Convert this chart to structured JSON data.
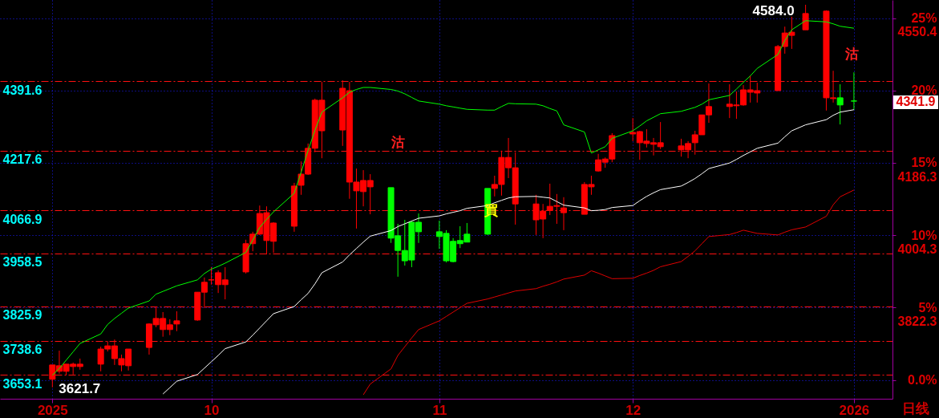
{
  "chart_data": {
    "type": "candlestick",
    "x": [
      "2025-09-08",
      "2025-09-09",
      "2025-09-10",
      "2025-09-11",
      "2025-09-12",
      "2025-09-15",
      "2025-09-16",
      "2025-09-17",
      "2025-09-18",
      "2025-09-19",
      "2025-09-22",
      "2025-09-23",
      "2025-09-24",
      "2025-09-25",
      "2025-09-26",
      "2025-09-29",
      "2025-09-30",
      "2025-10-01",
      "2025-10-02",
      "2025-10-03",
      "2025-10-06",
      "2025-10-07",
      "2025-10-08",
      "2025-10-09",
      "2025-10-10",
      "2025-10-13",
      "2025-10-14",
      "2025-10-15",
      "2025-10-16",
      "2025-10-17",
      "2025-10-20",
      "2025-10-21",
      "2025-10-22",
      "2025-10-23",
      "2025-10-24",
      "2025-10-27",
      "2025-10-28",
      "2025-10-29",
      "2025-10-30",
      "2025-10-31",
      "2025-11-03",
      "2025-11-04",
      "2025-11-05",
      "2025-11-06",
      "2025-11-07",
      "2025-11-10",
      "2025-11-11",
      "2025-11-12",
      "2025-11-13",
      "2025-11-14",
      "2025-11-17",
      "2025-11-18",
      "2025-11-19",
      "2025-11-20",
      "2025-11-21",
      "2025-11-24",
      "2025-11-25",
      "2025-11-26",
      "2025-11-27",
      "2025-11-28",
      "2025-12-01",
      "2025-12-02",
      "2025-12-03",
      "2025-12-04",
      "2025-12-05",
      "2025-12-08",
      "2025-12-09",
      "2025-12-10",
      "2025-12-11",
      "2025-12-12",
      "2025-12-15",
      "2025-12-16",
      "2025-12-17",
      "2025-12-18",
      "2025-12-19",
      "2025-12-22",
      "2025-12-23",
      "2025-12-24",
      "2025-12-26",
      "2025-12-29",
      "2025-12-30",
      "2025-12-31",
      "2026-01-02"
    ],
    "ohlc": [
      [
        3642,
        3678,
        3621.7,
        3678
      ],
      [
        3662,
        3714,
        3656,
        3676
      ],
      [
        3662,
        3680,
        3652,
        3680
      ],
      [
        3674,
        3684,
        3654,
        3680
      ],
      [
        3674,
        3694,
        3666,
        3680
      ],
      [
        3680,
        3724,
        3662,
        3718
      ],
      [
        3718,
        3738,
        3712,
        3726
      ],
      [
        3694,
        3742,
        3678,
        3726
      ],
      [
        3678,
        3704,
        3662,
        3694
      ],
      [
        3676,
        3718,
        3664,
        3718
      ],
      [
        3722,
        3783,
        3704,
        3781
      ],
      [
        3779,
        3825,
        3773,
        3795
      ],
      [
        3767,
        3811,
        3749,
        3795
      ],
      [
        3767,
        3793,
        3753,
        3779
      ],
      [
        3781,
        3813,
        3763,
        3789
      ],
      [
        3791,
        3861,
        3789,
        3861
      ],
      [
        3861,
        3898,
        3821,
        3886
      ],
      [
        3892,
        3924,
        3880,
        3892
      ],
      [
        3880,
        3916,
        3859,
        3910
      ],
      [
        3880,
        3924,
        3843,
        3892
      ],
      [
        3912,
        3993,
        3908,
        3983
      ],
      [
        3983,
        4013,
        3964,
        4007
      ],
      [
        4007,
        4079,
        4005,
        4059
      ],
      [
        3991,
        4077,
        3956,
        4061
      ],
      [
        3989,
        4037,
        3960,
        4035
      ],
      [
        4027,
        4136,
        4013,
        4128
      ],
      [
        4130,
        4190,
        4106,
        4158
      ],
      [
        4158,
        4235,
        4156,
        4223
      ],
      [
        4223,
        4348,
        4213,
        4344
      ],
      [
        4267,
        4390,
        4198,
        4344
      ],
      [
        4269,
        4394,
        4229,
        4374
      ],
      [
        4138,
        4390,
        4096,
        4368
      ],
      [
        4116,
        4172,
        4021,
        4138
      ],
      [
        4114,
        4168,
        4077,
        4142
      ],
      [
        4126,
        4158,
        4057,
        4142
      ],
      [
        4124,
        4124,
        3985,
        3997
      ],
      [
        4003,
        4033,
        3900,
        3966
      ],
      [
        3966,
        4043,
        3928,
        3940
      ],
      [
        4037,
        4041,
        3924,
        3942
      ],
      [
        4037,
        4059,
        3985,
        4013
      ],
      [
        4013,
        4041,
        3970,
        4001
      ],
      [
        4009,
        4017,
        3936,
        3940
      ],
      [
        3989,
        3997,
        3936,
        3938
      ],
      [
        3991,
        4027,
        3972,
        3983
      ],
      [
        4007,
        4035,
        3987,
        3987
      ],
      [
        4122,
        4122,
        4005,
        4007
      ],
      [
        4122,
        4154,
        4102,
        4132
      ],
      [
        4132,
        4217,
        4104,
        4200
      ],
      [
        4174,
        4249,
        4148,
        4200
      ],
      [
        4083,
        4213,
        4031,
        4174
      ],
      [
        4043,
        4106,
        4005,
        4083
      ],
      [
        4045,
        4083,
        3997,
        4065
      ],
      [
        4067,
        4134,
        4055,
        4077
      ],
      [
        4077,
        4108,
        4033,
        4079
      ],
      [
        4061,
        4100,
        4017,
        4073
      ],
      [
        4057,
        4138,
        4057,
        4132
      ],
      [
        4126,
        4154,
        4106,
        4132
      ],
      [
        4166,
        4209,
        4164,
        4194
      ],
      [
        4188,
        4200,
        4174,
        4196
      ],
      [
        4196,
        4261,
        4188,
        4255
      ],
      [
        4259,
        4299,
        4241,
        4263
      ],
      [
        4237,
        4267,
        4194,
        4265
      ],
      [
        4235,
        4271,
        4225,
        4241
      ],
      [
        4233,
        4249,
        4205,
        4237
      ],
      [
        4227,
        4289,
        4221,
        4237
      ],
      [
        4219,
        4247,
        4202,
        4229
      ],
      [
        4219,
        4241,
        4198,
        4235
      ],
      [
        4237,
        4267,
        4207,
        4257
      ],
      [
        4257,
        4307,
        4257,
        4307
      ],
      [
        4307,
        4386,
        4287,
        4328
      ],
      [
        4328,
        4384,
        4299,
        4334
      ],
      [
        4330,
        4366,
        4297,
        4332
      ],
      [
        4332,
        4382,
        4330,
        4370
      ],
      [
        4364,
        4406,
        4338,
        4370
      ],
      [
        4362,
        4388,
        4338,
        4368
      ],
      [
        4368,
        4483,
        4368,
        4479
      ],
      [
        4479,
        4529,
        4461,
        4513
      ],
      [
        4507,
        4554,
        4473,
        4515
      ],
      [
        4521,
        4584.0,
        4521,
        4562
      ],
      [
        4350,
        4570,
        4318,
        4568
      ],
      [
        4348,
        4418,
        4338,
        4350
      ],
      [
        4350,
        4384,
        4283,
        4332
      ],
      [
        4341.9,
        4414,
        4320,
        4341.9
      ]
    ],
    "colors": [
      "#ff0000",
      "#ff0000",
      "#ff0000",
      "#ff0000",
      "#ff0000",
      "#ff0000",
      "#ff0000",
      "#ff0000",
      "#ff0000",
      "#ff0000",
      "#ff0000",
      "#ff0000",
      "#ff0000",
      "#ff0000",
      "#ff0000",
      "#ff0000",
      "#ff0000",
      "#ff0000",
      "#ff0000",
      "#ff0000",
      "#ff0000",
      "#ff0000",
      "#ff0000",
      "#ff0000",
      "#ff0000",
      "#ff0000",
      "#ff0000",
      "#ff0000",
      "#ff0000",
      "#ff0000",
      "#ff0000",
      "#ff0000",
      "#ff0000",
      "#ff0000",
      "#ff0000",
      "#00ff00",
      "#00ff00",
      "#00ff00",
      "#00ff00",
      "#00ff00",
      "#00ff00",
      "#00ff00",
      "#00ff00",
      "#00ff00",
      "#00ff00",
      "#00ff00",
      "#ff0000",
      "#ff0000",
      "#ff0000",
      "#ff0000",
      "#ff0000",
      "#ff0000",
      "#ff0000",
      "#ff0000",
      "#ff0000",
      "#ff0000",
      "#ff0000",
      "#ff0000",
      "#ff0000",
      "#ff0000",
      "#ff0000",
      "#ff0000",
      "#ff0000",
      "#ff0000",
      "#ff0000",
      "#ff0000",
      "#ff0000",
      "#ff0000",
      "#ff0000",
      "#ff0000",
      "#ff0000",
      "#ff0000",
      "#ff0000",
      "#ff0000",
      "#ff0000",
      "#ff0000",
      "#ff0000",
      "#ff0000",
      "#ff0000",
      "#ff0000",
      "#ff0000",
      "#00ff00",
      "#00ff00"
    ],
    "series": [
      {
        "type": "line",
        "color": "#00ff00",
        "values": [
          3652,
          3669,
          3690,
          3711,
          3732,
          3756,
          3780,
          3795,
          3808,
          3821,
          3839,
          3856,
          3863,
          3870,
          3877,
          3892,
          3908,
          3919,
          3926,
          3934,
          3961,
          3992,
          4024,
          4044,
          4063,
          4110,
          4163,
          4217,
          4268,
          4314,
          4350,
          4364,
          4371,
          4376,
          4376,
          4371,
          4367,
          4360,
          4351,
          4342,
          4334,
          4330,
          4327,
          4324,
          4321,
          4319,
          4319,
          4328,
          4336,
          4335,
          4334,
          4330,
          4323,
          4317,
          4282,
          4264,
          4211,
          4219,
          4227,
          4248,
          4267,
          4279,
          4292,
          4301,
          4310,
          4316,
          4321,
          4326,
          4334,
          4345,
          4356,
          4372,
          4389,
          4405,
          4424,
          4459,
          4494,
          4521,
          4544,
          4541,
          4536,
          4530,
          4525
        ]
      },
      {
        "type": "line",
        "color": "#ffffff",
        "values": [
          null,
          null,
          null,
          null,
          null,
          null,
          null,
          null,
          null,
          null,
          null,
          null,
          3605,
          3621,
          3637,
          3654,
          3670,
          3686,
          3702,
          3719,
          3736,
          3753,
          3771,
          3789,
          3807,
          3825,
          3842,
          3858,
          3882,
          3910,
          3937,
          3955,
          3971,
          3987,
          4002,
          4016,
          4026,
          4033,
          4040,
          4047,
          4053,
          4058,
          4062,
          4066,
          4072,
          4079,
          4086,
          4092,
          4098,
          4101,
          4102,
          4100,
          4098,
          4089,
          4080,
          4073,
          4066,
          4067,
          4069,
          4074,
          4079,
          4091,
          4102,
          4111,
          4119,
          4128,
          4137,
          4147,
          4159,
          4172,
          4186,
          4195,
          4205,
          4214,
          4223,
          4236,
          4252,
          4267,
          4282,
          4295,
          4306,
          4314,
          4320
        ]
      },
      {
        "type": "line",
        "color": "#e00000",
        "values": [
          null,
          null,
          null,
          null,
          null,
          null,
          null,
          null,
          null,
          null,
          null,
          null,
          null,
          null,
          null,
          null,
          null,
          null,
          null,
          null,
          null,
          null,
          null,
          null,
          null,
          null,
          null,
          null,
          null,
          null,
          null,
          null,
          null,
          3603,
          3630,
          3668,
          3702,
          3724,
          3746,
          3767,
          3789,
          3800,
          3811,
          3822,
          3833,
          3844,
          3849,
          3854,
          3859,
          3864,
          3870,
          3876,
          3881,
          3887,
          3894,
          3904,
          3915,
          3909,
          3902,
          3895,
          3896,
          3903,
          3909,
          3916,
          3925,
          3938,
          3951,
          3965,
          3983,
          4001,
          4006,
          4011,
          4017,
          4013,
          4009,
          4005,
          4012,
          4018,
          4025,
          4052,
          4081,
          4101,
          4118
        ]
      }
    ],
    "xlim": [
      "2025-09-01",
      "2026-01-07"
    ],
    "xticks": [
      {
        "value": "2025-09-08",
        "label": "2025"
      },
      {
        "value": "2025-10-01",
        "label": "10"
      },
      {
        "value": "2025-11-03",
        "label": "11"
      },
      {
        "value": "2025-12-01",
        "label": "12"
      },
      {
        "value": "2026-01-02",
        "label": "2026"
      }
    ],
    "ylim": [
      3593,
      4596
    ],
    "yticks": [
      3653.1,
      3738.6,
      3825.9,
      3958.5,
      4066.9,
      4217.6,
      4391.6
    ],
    "y2lim": [
      -1.3,
      26.25
    ],
    "y2ticks": [
      {
        "value": 0,
        "label": "0.0%"
      },
      {
        "value": 5,
        "label": "5%"
      },
      {
        "value": 10,
        "label": "10%"
      },
      {
        "value": 15,
        "label": "15%"
      },
      {
        "value": 20,
        "label": "20%"
      },
      {
        "value": 25,
        "label": "25%"
      }
    ],
    "y3lim": [
      3593,
      4596
    ],
    "y3ticks": [
      3822.3,
      4004.3,
      4186.3,
      4550.4
    ],
    "grid": true,
    "annotations": [
      {
        "text": "4584.0",
        "x": "2025-12-26",
        "y": 4584.0
      },
      {
        "text": "3621.7",
        "x": "2025-09-08",
        "y": 3621.7
      },
      "沽",
      "買",
      "沽",
      "4341.9",
      "日线"
    ]
  }
}
